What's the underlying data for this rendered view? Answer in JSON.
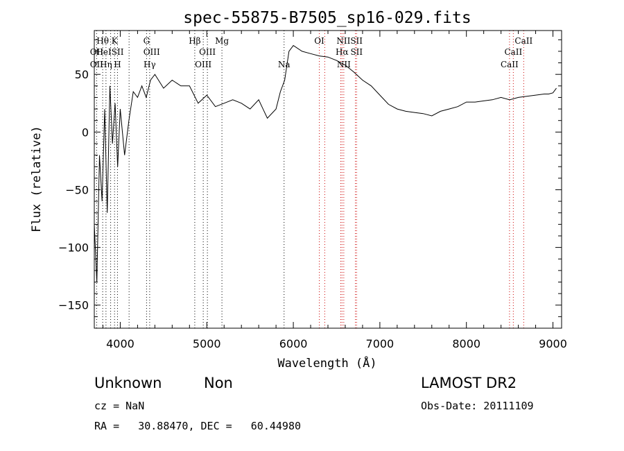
{
  "chart_data": {
    "type": "line",
    "title": "spec-55875-B7505_sp16-029.fits",
    "xlabel": "Wavelength (Å)",
    "ylabel": "Flux (relative)",
    "xlim": [
      3700,
      9100
    ],
    "ylim": [
      -170,
      88
    ],
    "x_ticks": [
      4000,
      5000,
      6000,
      7000,
      8000,
      9000
    ],
    "y_ticks": [
      -150,
      -100,
      -50,
      0,
      50
    ],
    "x_tick_labels": [
      "4000",
      "5000",
      "6000",
      "7000",
      "8000",
      "9000"
    ],
    "y_tick_labels": [
      "−150",
      "−100",
      "−50",
      "0",
      "50"
    ],
    "grid": false,
    "series": [
      {
        "x": [
          3700,
          3730,
          3760,
          3790,
          3820,
          3850,
          3880,
          3910,
          3940,
          3970,
          4000,
          4050,
          4100,
          4150,
          4200,
          4250,
          4300,
          4350,
          4400,
          4500,
          4600,
          4700,
          4800,
          4900,
          5000,
          5100,
          5200,
          5300,
          5400,
          5500,
          5600,
          5700,
          5800,
          5850,
          5900,
          5950,
          6000,
          6100,
          6200,
          6300,
          6400,
          6500,
          6600,
          6700,
          6800,
          6900,
          7000,
          7100,
          7200,
          7300,
          7400,
          7500,
          7600,
          7700,
          7800,
          7900,
          8000,
          8100,
          8200,
          8300,
          8400,
          8500,
          8600,
          8700,
          8800,
          8900,
          8950,
          9000,
          9040
        ],
        "y": [
          -80,
          -130,
          -20,
          -60,
          20,
          -70,
          40,
          -10,
          25,
          -30,
          20,
          -20,
          10,
          35,
          30,
          40,
          30,
          45,
          50,
          38,
          45,
          40,
          40,
          25,
          32,
          22,
          25,
          28,
          25,
          20,
          28,
          12,
          20,
          35,
          45,
          70,
          75,
          70,
          68,
          66,
          65,
          62,
          58,
          52,
          45,
          40,
          32,
          24,
          20,
          18,
          17,
          16,
          14,
          18,
          20,
          22,
          26,
          26,
          27,
          28,
          30,
          28,
          30,
          31,
          32,
          33,
          33,
          34,
          38
        ]
      }
    ]
  },
  "line_labels": [
    {
      "label": "Hθ",
      "x": 3797,
      "row": 1
    },
    {
      "label": "K",
      "x": 3934,
      "row": 1
    },
    {
      "label": "G",
      "x": 4304,
      "row": 1
    },
    {
      "label": "Hβ",
      "x": 4861,
      "row": 1
    },
    {
      "label": "Mg",
      "x": 5175,
      "row": 1
    },
    {
      "label": "OI",
      "x": 6300,
      "row": 1
    },
    {
      "label": "NIISII",
      "x": 6650,
      "row": 1
    },
    {
      "label": "CaII",
      "x": 8662,
      "row": 1
    },
    {
      "label": "OII",
      "x": 3727,
      "row": 2
    },
    {
      "label": "HeISII",
      "x": 3880,
      "row": 2
    },
    {
      "label": "OIII",
      "x": 4363,
      "row": 2
    },
    {
      "label": "OIII",
      "x": 5007,
      "row": 2
    },
    {
      "label": "Hα",
      "x": 6563,
      "row": 2
    },
    {
      "label": "SII",
      "x": 6731,
      "row": 2
    },
    {
      "label": "CaII",
      "x": 8542,
      "row": 2
    },
    {
      "label": "OII",
      "x": 3727,
      "row": 3
    },
    {
      "label": "Hη",
      "x": 3835,
      "row": 3
    },
    {
      "label": "H",
      "x": 3968,
      "row": 3
    },
    {
      "label": "Hγ",
      "x": 4340,
      "row": 3
    },
    {
      "label": "OIII",
      "x": 4959,
      "row": 3
    },
    {
      "label": "Na",
      "x": 5893,
      "row": 3
    },
    {
      "label": "NII",
      "x": 6583,
      "row": 3
    },
    {
      "label": "CaII",
      "x": 8498,
      "row": 3
    }
  ],
  "line_markers_black": [
    3727,
    3797,
    3835,
    3889,
    3934,
    3968,
    4102,
    4304,
    4340,
    4861,
    4959,
    5007,
    5175,
    5893
  ],
  "line_markers_red": [
    6300,
    6363,
    6548,
    6563,
    6583,
    6717,
    6731,
    8498,
    8542,
    8662
  ],
  "info": {
    "class": "Unknown",
    "subclass": "Non",
    "survey": "LAMOST DR2",
    "cz": "cz = NaN",
    "obs_date": "Obs-Date: 20111109",
    "coords": "RA =   30.88470, DEC =   60.44980"
  }
}
